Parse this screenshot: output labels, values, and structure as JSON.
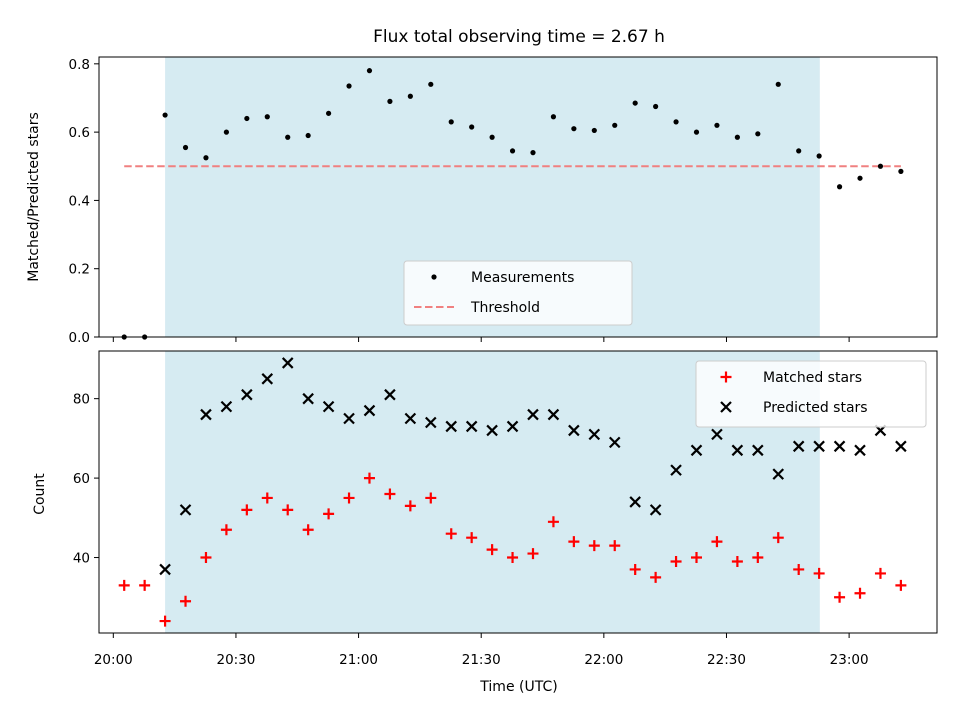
{
  "chart_data": {
    "title": "Flux total observing time = 2.67 h",
    "xlabel": "Time (UTC)",
    "x_tick_labels": [
      "20:00",
      "20:30",
      "21:00",
      "21:30",
      "22:00",
      "22:30",
      "23:00"
    ],
    "x_tick_minutes": [
      0,
      30,
      60,
      90,
      120,
      150,
      180
    ],
    "x_range_minutes": [
      -3.5,
      201.5
    ],
    "shaded_interval": {
      "start": "20:12:40",
      "end": "22:52:50",
      "color": "#add8e6"
    },
    "times": [
      "20:02:40",
      "20:07:40",
      "20:12:40",
      "20:17:40",
      "20:22:40",
      "20:27:40",
      "20:32:40",
      "20:37:40",
      "20:42:40",
      "20:47:40",
      "20:52:40",
      "20:57:40",
      "21:02:40",
      "21:07:40",
      "21:12:40",
      "21:17:40",
      "21:22:40",
      "21:27:40",
      "21:32:40",
      "21:37:40",
      "21:42:40",
      "21:47:40",
      "21:52:40",
      "21:57:40",
      "22:02:40",
      "22:07:40",
      "22:12:40",
      "22:17:40",
      "22:22:40",
      "22:27:40",
      "22:32:40",
      "22:37:40",
      "22:42:40",
      "22:47:40",
      "22:52:40",
      "22:57:40",
      "23:02:40",
      "23:07:40",
      "23:12:40"
    ],
    "panels": [
      {
        "type": "scatter",
        "ylabel": "Matched/Predicted stars",
        "ylim": [
          0,
          0.82
        ],
        "y_ticks": [
          0.0,
          0.2,
          0.4,
          0.6,
          0.8
        ],
        "y_tick_labels": [
          "0.0",
          "0.2",
          "0.4",
          "0.6",
          "0.8"
        ],
        "legend": "bottom-center",
        "series": [
          {
            "name": "Measurements",
            "marker": "dot",
            "color": "#000000",
            "values": [
              0.0,
              0.0,
              0.65,
              0.555,
              0.525,
              0.6,
              0.64,
              0.645,
              0.585,
              0.59,
              0.655,
              0.735,
              0.78,
              0.69,
              0.705,
              0.74,
              0.63,
              0.615,
              0.585,
              0.545,
              0.54,
              0.645,
              0.61,
              0.605,
              0.62,
              0.685,
              0.675,
              0.63,
              0.6,
              0.62,
              0.585,
              0.595,
              0.74,
              0.545,
              0.53,
              0.44,
              0.465,
              0.5,
              0.485
            ]
          }
        ],
        "threshold": {
          "name": "Threshold",
          "value": 0.5,
          "color": "#f08080",
          "start": "20:02:40",
          "end": "23:12:40"
        }
      },
      {
        "type": "scatter",
        "ylabel": "Count",
        "ylim": [
          21,
          92
        ],
        "y_ticks": [
          40,
          60,
          80
        ],
        "y_tick_labels": [
          "40",
          "60",
          "80"
        ],
        "legend": "top-right",
        "series": [
          {
            "name": "Matched stars",
            "marker": "plus",
            "color": "#ff0000",
            "values": [
              33,
              33,
              24,
              29,
              40,
              47,
              52,
              55,
              52,
              47,
              51,
              55,
              60,
              56,
              53,
              55,
              46,
              45,
              42,
              40,
              41,
              49,
              44,
              43,
              43,
              37,
              35,
              39,
              40,
              44,
              39,
              40,
              45,
              37,
              36,
              30,
              31,
              36,
              33
            ]
          },
          {
            "name": "Predicted stars",
            "marker": "x",
            "color": "#000000",
            "offset": 2,
            "values": [
              37,
              52,
              76,
              78,
              81,
              85,
              89,
              80,
              78,
              75,
              77,
              81,
              75,
              74,
              73,
              73,
              72,
              73,
              76,
              76,
              72,
              71,
              69,
              54,
              52,
              62,
              67,
              71,
              67,
              67,
              61,
              68,
              68,
              68,
              67,
              72,
              68
            ]
          }
        ]
      }
    ]
  }
}
